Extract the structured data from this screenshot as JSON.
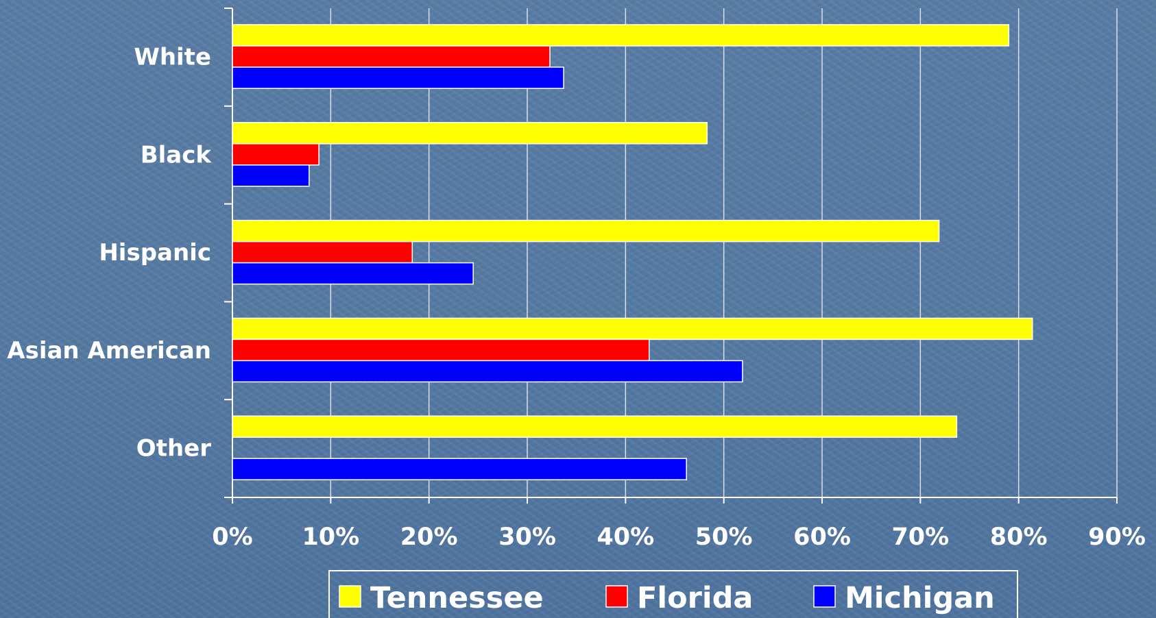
{
  "chart_data": {
    "type": "bar",
    "orientation": "horizontal",
    "categories": [
      "White",
      "Black",
      "Hispanic",
      "Asian American",
      "Other"
    ],
    "series": [
      {
        "name": "Tennessee",
        "color": "#ffff00",
        "values": [
          79,
          48.3,
          71.9,
          81.4,
          73.7
        ]
      },
      {
        "name": "Florida",
        "color": "#ff0000",
        "values": [
          32.3,
          8.8,
          18.3,
          42.4,
          null
        ]
      },
      {
        "name": "Michigan",
        "color": "#0000ff",
        "values": [
          33.7,
          7.8,
          24.5,
          51.9,
          46.2
        ]
      }
    ],
    "x_ticks": [
      "0%",
      "10%",
      "20%",
      "30%",
      "40%",
      "50%",
      "60%",
      "70%",
      "80%",
      "90%"
    ],
    "xlim": [
      0,
      90
    ],
    "grid": "vertical",
    "legend_position": "bottom",
    "title": "",
    "xlabel": "",
    "ylabel": ""
  }
}
